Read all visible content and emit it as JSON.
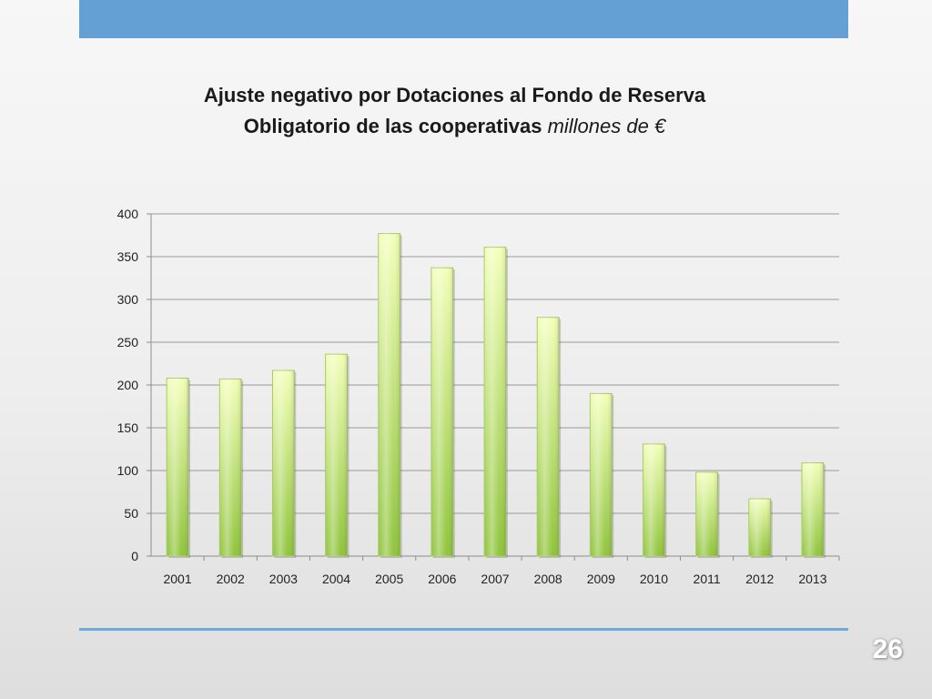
{
  "slide": {
    "page_number": "26",
    "band_color": "#64a0d4",
    "footer_line_color": "#6fa8dc"
  },
  "chart_data": {
    "type": "bar",
    "title_line1": "Ajuste negativo por Dotaciones al Fondo de Reserva",
    "title_line2_bold": "Obligatorio de las cooperativas",
    "title_line2_italic": "millones de  €",
    "categories": [
      "2001",
      "2002",
      "2003",
      "2004",
      "2005",
      "2006",
      "2007",
      "2008",
      "2009",
      "2010",
      "2011",
      "2012",
      "2013"
    ],
    "values": [
      208,
      207,
      217,
      236,
      377,
      337,
      361,
      279,
      190,
      131,
      98,
      67,
      109
    ],
    "ylim": [
      0,
      400
    ],
    "yticks": [
      0,
      50,
      100,
      150,
      200,
      250,
      300,
      350,
      400
    ],
    "grid": true,
    "legend": "none",
    "bar_color_light": "#f2ffb8",
    "bar_color_dark": "#8fc43c"
  }
}
